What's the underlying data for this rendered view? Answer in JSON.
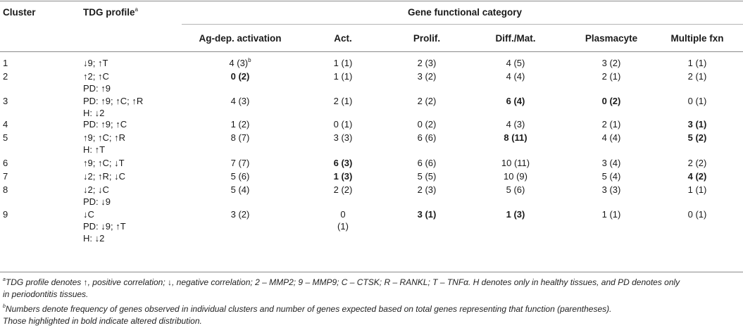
{
  "header": {
    "cluster": "Cluster",
    "tdg_profile": "TDG profile",
    "tdg_profile_sup": "a",
    "group": "Gene functional category",
    "columns": [
      "Ag-dep. activation",
      "Act.",
      "Prolif.",
      "Diff./Mat.",
      "Plasmacyte",
      "Multiple fxn"
    ]
  },
  "rows": [
    {
      "cluster": "1",
      "profile": [
        "↓9; ↑T"
      ],
      "cells": [
        {
          "v": "4 (3)",
          "bold": false,
          "sup": "b"
        },
        {
          "v": "1 (1)",
          "bold": false
        },
        {
          "v": "2 (3)",
          "bold": false
        },
        {
          "v": "4 (5)",
          "bold": false
        },
        {
          "v": "3 (2)",
          "bold": false
        },
        {
          "v": "1 (1)",
          "bold": false
        }
      ]
    },
    {
      "cluster": "2",
      "profile": [
        "↑2; ↑C",
        "PD: ↑9"
      ],
      "cells": [
        {
          "v": "0 (2)",
          "bold": true
        },
        {
          "v": "1 (1)",
          "bold": false
        },
        {
          "v": "3 (2)",
          "bold": false
        },
        {
          "v": "4 (4)",
          "bold": false
        },
        {
          "v": "2 (1)",
          "bold": false
        },
        {
          "v": "2 (1)",
          "bold": false
        }
      ]
    },
    {
      "cluster": "3",
      "profile": [
        "PD: ↑9; ↑C; ↑R",
        "H: ↓2"
      ],
      "cells": [
        {
          "v": "4 (3)",
          "bold": false
        },
        {
          "v": "2 (1)",
          "bold": false
        },
        {
          "v": "2 (2)",
          "bold": false
        },
        {
          "v": "6 (4)",
          "bold": true
        },
        {
          "v": "0 (2)",
          "bold": true
        },
        {
          "v": "0 (1)",
          "bold": false
        }
      ]
    },
    {
      "cluster": "4",
      "profile": [
        "PD: ↑9; ↑C"
      ],
      "cells": [
        {
          "v": "1 (2)",
          "bold": false
        },
        {
          "v": "0 (1)",
          "bold": false
        },
        {
          "v": "0 (2)",
          "bold": false
        },
        {
          "v": "4 (3)",
          "bold": false
        },
        {
          "v": "2 (1)",
          "bold": false
        },
        {
          "v": "3 (1)",
          "bold": true
        }
      ]
    },
    {
      "cluster": "5",
      "profile": [
        "↑9; ↑C; ↑R",
        "H: ↑T"
      ],
      "cells": [
        {
          "v": "8 (7)",
          "bold": false
        },
        {
          "v": "3 (3)",
          "bold": false
        },
        {
          "v": "6 (6)",
          "bold": false
        },
        {
          "v": "8 (11)",
          "bold": true
        },
        {
          "v": "4 (4)",
          "bold": false
        },
        {
          "v": "5 (2)",
          "bold": true
        }
      ]
    },
    {
      "cluster": "6",
      "profile": [
        "↑9; ↑C; ↓T"
      ],
      "cells": [
        {
          "v": "7 (7)",
          "bold": false
        },
        {
          "v": "6 (3)",
          "bold": true
        },
        {
          "v": "6 (6)",
          "bold": false
        },
        {
          "v": "10 (11)",
          "bold": false
        },
        {
          "v": "3 (4)",
          "bold": false
        },
        {
          "v": "2 (2)",
          "bold": false
        }
      ]
    },
    {
      "cluster": "7",
      "profile": [
        "↓2; ↑R; ↓C"
      ],
      "cells": [
        {
          "v": "5 (6)",
          "bold": false
        },
        {
          "v": "1 (3)",
          "bold": true
        },
        {
          "v": "5 (5)",
          "bold": false
        },
        {
          "v": "10 (9)",
          "bold": false
        },
        {
          "v": "5 (4)",
          "bold": false
        },
        {
          "v": "4 (2)",
          "bold": true
        }
      ]
    },
    {
      "cluster": "8",
      "profile": [
        "↓2; ↓C",
        "PD: ↓9"
      ],
      "cells": [
        {
          "v": "5 (4)",
          "bold": false
        },
        {
          "v": "2 (2)",
          "bold": false
        },
        {
          "v": "2 (3)",
          "bold": false
        },
        {
          "v": "5 (6)",
          "bold": false
        },
        {
          "v": "3 (3)",
          "bold": false
        },
        {
          "v": "1 (1)",
          "bold": false
        }
      ]
    },
    {
      "cluster": "9",
      "profile": [
        "↓C",
        "PD: ↓9; ↑T",
        "H: ↓2"
      ],
      "cells": [
        {
          "v": "3 (2)",
          "bold": false
        },
        {
          "v": "0",
          "bold": false,
          "v2": "(1)"
        },
        {
          "v": "3 (1)",
          "bold": true
        },
        {
          "v": "1 (3)",
          "bold": true
        },
        {
          "v": "1 (1)",
          "bold": false
        },
        {
          "v": "0 (1)",
          "bold": false
        }
      ]
    }
  ],
  "footnotes": {
    "a_marker": "a",
    "a_line1": "TDG profile denotes ↑, positive correlation; ↓, negative correlation; 2 – MMP2; 9 – MMP9; C – CTSK; R – RANKL; T – TNFα. H denotes only in healthy tissues, and PD denotes only",
    "a_line2": "in periodontitis tissues.",
    "b_marker": "b",
    "b_line1": "Numbers denote frequency of genes observed in individual clusters and number of genes expected based on total genes representing that function (parentheses).",
    "b_line2": "Those highlighted in bold indicate altered distribution."
  }
}
